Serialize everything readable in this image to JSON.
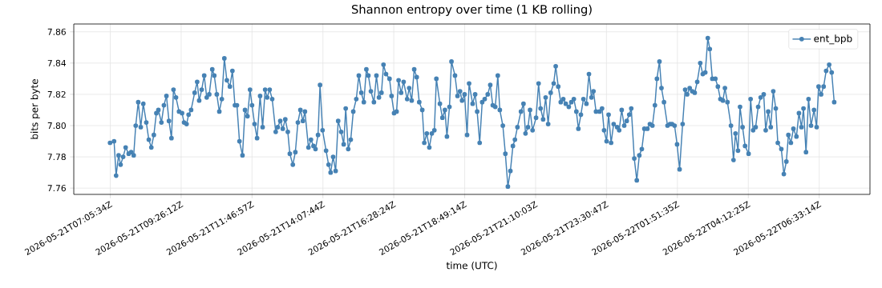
{
  "chart_data": {
    "type": "line",
    "title": "Shannon entropy over time (1 KB rolling)",
    "xlabel": "time (UTC)",
    "ylabel": "bits per byte",
    "x": [
      "2026-05-21T07:05",
      "2026-05-21T07:13",
      "2026-05-21T07:17",
      "2026-05-21T07:22",
      "2026-05-21T07:26",
      "2026-05-21T07:31",
      "2026-05-21T07:36",
      "2026-05-21T07:42",
      "2026-05-21T07:47",
      "2026-05-21T07:52",
      "2026-05-21T07:56",
      "2026-05-21T08:01",
      "2026-05-21T08:06",
      "2026-05-21T08:11",
      "2026-05-21T08:17",
      "2026-05-21T08:22",
      "2026-05-21T08:27",
      "2026-05-21T08:32",
      "2026-05-21T08:37",
      "2026-05-21T08:41",
      "2026-05-21T08:47",
      "2026-05-21T08:52",
      "2026-05-21T08:57",
      "2026-05-21T09:02",
      "2026-05-21T09:07",
      "2026-05-21T09:11",
      "2026-05-21T09:16",
      "2026-05-21T09:22",
      "2026-05-21T09:28",
      "2026-05-21T09:32",
      "2026-05-21T09:37",
      "2026-05-21T09:41",
      "2026-05-21T09:46",
      "2026-05-21T09:53",
      "2026-05-21T09:58",
      "2026-05-21T10:02",
      "2026-05-21T10:07",
      "2026-05-21T10:12",
      "2026-05-21T10:17",
      "2026-05-21T10:22",
      "2026-05-21T10:28",
      "2026-05-21T10:32",
      "2026-05-21T10:37",
      "2026-05-21T10:42",
      "2026-05-21T10:47",
      "2026-05-21T10:52",
      "2026-05-21T10:57",
      "2026-05-21T11:03",
      "2026-05-21T11:08",
      "2026-05-21T11:13",
      "2026-05-21T11:17",
      "2026-05-21T11:22",
      "2026-05-21T11:28",
      "2026-05-21T11:33",
      "2026-05-21T11:38",
      "2026-05-21T11:43",
      "2026-05-21T11:47",
      "2026-05-21T11:52",
      "2026-05-21T11:57",
      "2026-05-21T12:03",
      "2026-05-21T12:08",
      "2026-05-21T12:13",
      "2026-05-21T12:17",
      "2026-05-21T12:22",
      "2026-05-21T12:27",
      "2026-05-21T12:34",
      "2026-05-21T12:38",
      "2026-05-21T12:43",
      "2026-05-21T12:48",
      "2026-05-21T12:53",
      "2026-05-21T12:58",
      "2026-05-21T13:02",
      "2026-05-21T13:08",
      "2026-05-21T13:13",
      "2026-05-21T13:18",
      "2026-05-21T13:23",
      "2026-05-21T13:28",
      "2026-05-21T13:32",
      "2026-05-21T13:39",
      "2026-05-21T13:44",
      "2026-05-21T13:49",
      "2026-05-21T13:53",
      "2026-05-21T13:58",
      "2026-05-21T14:02",
      "2026-05-21T14:07",
      "2026-05-21T14:14",
      "2026-05-21T14:19",
      "2026-05-21T14:23",
      "2026-05-21T14:28",
      "2026-05-21T14:33",
      "2026-05-21T14:38",
      "2026-05-21T14:44",
      "2026-05-21T14:49",
      "2026-05-21T14:53",
      "2026-05-21T14:58",
      "2026-05-21T15:03",
      "2026-05-21T15:08",
      "2026-05-21T15:14",
      "2026-05-21T15:19",
      "2026-05-21T15:24",
      "2026-05-21T15:29",
      "2026-05-21T15:34",
      "2026-05-21T15:38",
      "2026-05-21T15:43",
      "2026-05-21T15:49",
      "2026-05-21T15:54",
      "2026-05-21T15:59",
      "2026-05-21T16:04",
      "2026-05-21T16:08",
      "2026-05-21T16:13",
      "2026-05-21T16:20",
      "2026-05-21T16:24",
      "2026-05-21T16:29",
      "2026-05-21T16:34",
      "2026-05-21T16:38",
      "2026-05-21T16:43",
      "2026-05-21T16:48",
      "2026-05-21T16:55",
      "2026-05-21T16:59",
      "2026-05-21T17:04",
      "2026-05-21T17:09",
      "2026-05-21T17:14",
      "2026-05-21T17:19",
      "2026-05-21T17:25",
      "2026-05-21T17:29",
      "2026-05-21T17:34",
      "2026-05-21T17:39",
      "2026-05-21T17:44",
      "2026-05-21T17:49",
      "2026-05-21T17:53",
      "2026-05-21T18:00",
      "2026-05-21T18:05",
      "2026-05-21T18:10",
      "2026-05-21T18:14",
      "2026-05-21T18:19",
      "2026-05-21T18:23",
      "2026-05-21T18:30",
      "2026-05-21T18:35",
      "2026-05-21T18:40",
      "2026-05-21T18:44",
      "2026-05-21T18:49",
      "2026-05-21T18:54",
      "2026-05-21T18:58",
      "2026-05-21T19:05",
      "2026-05-21T19:10",
      "2026-05-21T19:14",
      "2026-05-21T19:19",
      "2026-05-21T19:24",
      "2026-05-21T19:29",
      "2026-05-21T19:35",
      "2026-05-21T19:40",
      "2026-05-21T19:45",
      "2026-05-21T19:50",
      "2026-05-21T19:55",
      "2026-05-21T19:59",
      "2026-05-21T20:05",
      "2026-05-21T20:10",
      "2026-05-21T20:15",
      "2026-05-21T20:20",
      "2026-05-21T20:25",
      "2026-05-21T20:29",
      "2026-05-21T20:34",
      "2026-05-21T20:41",
      "2026-05-21T20:46",
      "2026-05-21T20:50",
      "2026-05-21T20:55",
      "2026-05-21T20:59",
      "2026-05-21T21:04",
      "2026-05-21T21:11",
      "2026-05-21T21:16",
      "2026-05-21T21:20",
      "2026-05-21T21:25",
      "2026-05-21T21:30",
      "2026-05-21T21:35",
      "2026-05-21T21:40",
      "2026-05-21T21:46",
      "2026-05-21T21:50",
      "2026-05-21T21:55",
      "2026-05-21T22:00",
      "2026-05-21T22:05",
      "2026-05-21T22:10",
      "2026-05-21T22:16",
      "2026-05-21T22:21",
      "2026-05-21T22:26",
      "2026-05-21T22:31",
      "2026-05-21T22:35",
      "2026-05-21T22:40",
      "2026-05-21T22:45",
      "2026-05-21T22:51",
      "2026-05-21T22:56",
      "2026-05-21T23:01",
      "2026-05-21T23:05",
      "2026-05-21T23:10",
      "2026-05-21T23:17",
      "2026-05-21T23:22",
      "2026-05-21T23:26",
      "2026-05-21T23:31",
      "2026-05-21T23:35",
      "2026-05-21T23:40",
      "2026-05-21T23:45",
      "2026-05-21T23:52",
      "2026-05-21T23:56",
      "2026-05-22T00:01",
      "2026-05-22T00:06",
      "2026-05-22T00:11",
      "2026-05-22T00:16",
      "2026-05-22T00:20",
      "2026-05-22T00:26",
      "2026-05-22T00:31",
      "2026-05-22T00:36",
      "2026-05-22T00:41",
      "2026-05-22T00:46",
      "2026-05-22T00:52",
      "2026-05-22T00:57",
      "2026-05-22T01:02",
      "2026-05-22T01:07",
      "2026-05-22T01:11",
      "2026-05-22T01:16",
      "2026-05-22T01:20",
      "2026-05-22T01:25",
      "2026-05-22T01:32",
      "2026-05-22T01:37",
      "2026-05-22T01:41",
      "2026-05-22T01:46",
      "2026-05-22T01:51",
      "2026-05-22T01:56",
      "2026-05-22T02:02",
      "2026-05-22T02:07",
      "2026-05-22T02:11",
      "2026-05-22T02:16",
      "2026-05-22T02:21",
      "2026-05-22T02:26",
      "2026-05-22T02:31",
      "2026-05-22T02:37",
      "2026-05-22T02:42",
      "2026-05-22T02:47",
      "2026-05-22T02:52",
      "2026-05-22T02:56",
      "2026-05-22T03:01",
      "2026-05-22T03:07",
      "2026-05-22T03:12",
      "2026-05-22T03:17",
      "2026-05-22T03:22",
      "2026-05-22T03:26",
      "2026-05-22T03:31",
      "2026-05-22T03:38",
      "2026-05-22T03:43",
      "2026-05-22T03:47",
      "2026-05-22T03:52",
      "2026-05-22T03:56",
      "2026-05-22T04:01",
      "2026-05-22T04:06",
      "2026-05-22T04:13",
      "2026-05-22T04:17",
      "2026-05-22T04:22",
      "2026-05-22T04:27",
      "2026-05-22T04:32",
      "2026-05-22T04:37",
      "2026-05-22T04:43",
      "2026-05-22T04:47",
      "2026-05-22T04:52",
      "2026-05-22T04:57",
      "2026-05-22T05:02",
      "2026-05-22T05:07",
      "2026-05-22T05:11",
      "2026-05-22T05:18",
      "2026-05-22T05:23",
      "2026-05-22T05:28",
      "2026-05-22T05:32",
      "2026-05-22T05:37",
      "2026-05-22T05:42",
      "2026-05-22T05:48",
      "2026-05-22T05:53",
      "2026-05-22T05:58",
      "2026-05-22T06:02",
      "2026-05-22T06:07",
      "2026-05-22T06:12",
      "2026-05-22T06:17",
      "2026-05-22T06:23",
      "2026-05-22T06:28",
      "2026-05-22T06:32",
      "2026-05-22T06:37",
      "2026-05-22T06:42",
      "2026-05-22T06:47",
      "2026-05-22T06:53",
      "2026-05-22T06:58",
      "2026-05-22T07:03"
    ],
    "series": [
      {
        "name": "ent_bpb",
        "color": "#4682b4",
        "values": [
          7.789,
          7.79,
          7.768,
          7.781,
          7.775,
          7.78,
          7.786,
          7.782,
          7.783,
          7.781,
          7.8,
          7.815,
          7.799,
          7.814,
          7.802,
          7.791,
          7.786,
          7.794,
          7.808,
          7.81,
          7.802,
          7.813,
          7.819,
          7.803,
          7.792,
          7.823,
          7.818,
          7.809,
          7.808,
          7.802,
          7.801,
          7.807,
          7.81,
          7.821,
          7.828,
          7.816,
          7.823,
          7.832,
          7.818,
          7.82,
          7.836,
          7.832,
          7.82,
          7.809,
          7.817,
          7.843,
          7.829,
          7.825,
          7.835,
          7.813,
          7.813,
          7.79,
          7.781,
          7.81,
          7.806,
          7.823,
          7.813,
          7.801,
          7.792,
          7.819,
          7.799,
          7.823,
          7.818,
          7.823,
          7.817,
          7.796,
          7.799,
          7.803,
          7.798,
          7.804,
          7.796,
          7.782,
          7.775,
          7.783,
          7.802,
          7.81,
          7.803,
          7.809,
          7.786,
          7.791,
          7.787,
          7.785,
          7.794,
          7.826,
          7.797,
          7.784,
          7.775,
          7.77,
          7.78,
          7.771,
          7.803,
          7.796,
          7.788,
          7.811,
          7.785,
          7.791,
          7.809,
          7.817,
          7.832,
          7.821,
          7.815,
          7.836,
          7.832,
          7.822,
          7.815,
          7.832,
          7.818,
          7.821,
          7.839,
          7.833,
          7.83,
          7.819,
          7.808,
          7.809,
          7.829,
          7.821,
          7.828,
          7.817,
          7.824,
          7.816,
          7.836,
          7.831,
          7.815,
          7.81,
          7.789,
          7.795,
          7.786,
          7.795,
          7.797,
          7.83,
          7.814,
          7.805,
          7.81,
          7.793,
          7.812,
          7.841,
          7.832,
          7.819,
          7.822,
          7.816,
          7.82,
          7.794,
          7.827,
          7.814,
          7.82,
          7.809,
          7.789,
          7.815,
          7.817,
          7.82,
          7.826,
          7.813,
          7.812,
          7.832,
          7.81,
          7.8,
          7.782,
          7.761,
          7.771,
          7.787,
          7.791,
          7.799,
          7.809,
          7.814,
          7.795,
          7.799,
          7.81,
          7.797,
          7.805,
          7.827,
          7.811,
          7.804,
          7.818,
          7.801,
          7.821,
          7.827,
          7.838,
          7.825,
          7.815,
          7.817,
          7.814,
          7.812,
          7.815,
          7.817,
          7.809,
          7.798,
          7.807,
          7.817,
          7.814,
          7.833,
          7.818,
          7.822,
          7.809,
          7.809,
          7.811,
          7.797,
          7.79,
          7.807,
          7.789,
          7.801,
          7.799,
          7.797,
          7.81,
          7.8,
          7.803,
          7.807,
          7.811,
          7.779,
          7.765,
          7.781,
          7.785,
          7.798,
          7.798,
          7.801,
          7.8,
          7.813,
          7.83,
          7.841,
          7.824,
          7.815,
          7.8,
          7.801,
          7.801,
          7.8,
          7.788,
          7.772,
          7.801,
          7.823,
          7.82,
          7.824,
          7.822,
          7.821,
          7.828,
          7.84,
          7.833,
          7.834,
          7.856,
          7.849,
          7.83,
          7.83,
          7.825,
          7.817,
          7.816,
          7.824,
          7.815,
          7.8,
          7.778,
          7.795,
          7.784,
          7.812,
          7.799,
          7.787,
          7.782,
          7.817,
          7.797,
          7.799,
          7.812,
          7.818,
          7.82,
          7.797,
          7.809,
          7.799,
          7.822,
          7.811,
          7.789,
          7.785,
          7.769,
          7.777,
          7.794,
          7.789,
          7.798,
          7.793,
          7.808,
          7.799,
          7.811,
          7.783,
          7.817,
          7.8,
          7.81,
          7.799,
          7.825,
          7.82,
          7.825,
          7.835,
          7.839,
          7.834,
          7.815
        ]
      }
    ],
    "xlim": [
      "2026-05-21T05:53",
      "2026-05-22T08:14"
    ],
    "ylim": [
      7.756,
      7.865
    ],
    "xticks": [
      {
        "value": "2026-05-21T07:05:34",
        "label": "2026-05-21T07:05:34Z"
      },
      {
        "value": "2026-05-21T09:26:12",
        "label": "2026-05-21T09:26:12Z"
      },
      {
        "value": "2026-05-21T11:46:57",
        "label": "2026-05-21T11:46:57Z"
      },
      {
        "value": "2026-05-21T14:07:44",
        "label": "2026-05-21T14:07:44Z"
      },
      {
        "value": "2026-05-21T16:28:24",
        "label": "2026-05-21T16:28:24Z"
      },
      {
        "value": "2026-05-21T18:49:14",
        "label": "2026-05-21T18:49:14Z"
      },
      {
        "value": "2026-05-21T21:10:03",
        "label": "2026-05-21T21:10:03Z"
      },
      {
        "value": "2026-05-21T23:30:47",
        "label": "2026-05-21T23:30:47Z"
      },
      {
        "value": "2026-05-22T01:51:35",
        "label": "2026-05-22T01:51:35Z"
      },
      {
        "value": "2026-05-22T04:12:25",
        "label": "2026-05-22T04:12:25Z"
      },
      {
        "value": "2026-05-22T06:33:14",
        "label": "2026-05-22T06:33:14Z"
      }
    ],
    "yticks": [
      7.76,
      7.78,
      {
        "value": 7.8,
        "label": "7.80"
      },
      7.82,
      7.84,
      7.86
    ],
    "grid": true,
    "legend": "top right",
    "marker": "circle",
    "line_style": "solid"
  }
}
